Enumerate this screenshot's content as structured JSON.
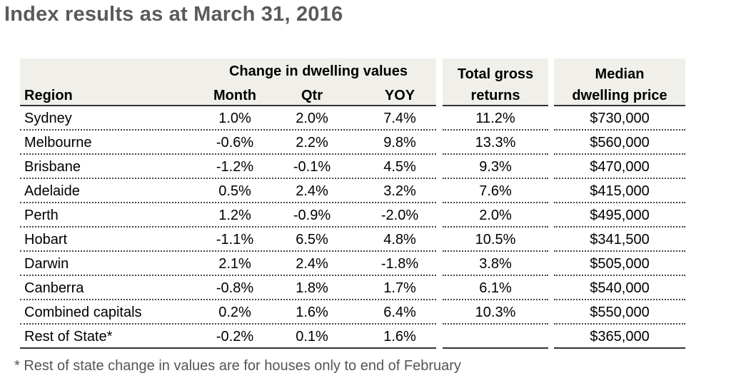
{
  "title": "Index results as at March 31, 2016",
  "header": {
    "group_label": "Change in dwelling values",
    "region": "Region",
    "month": "Month",
    "qtr": "Qtr",
    "yoy": "YOY",
    "returns_line1": "Total gross",
    "returns_line2": "returns",
    "median_line1": "Median",
    "median_line2": "dwelling price"
  },
  "rows": [
    {
      "region": "Sydney",
      "month": "1.0%",
      "qtr": "2.0%",
      "yoy": "7.4%",
      "returns": "11.2%",
      "median": "$730,000"
    },
    {
      "region": "Melbourne",
      "month": "-0.6%",
      "qtr": "2.2%",
      "yoy": "9.8%",
      "returns": "13.3%",
      "median": "$560,000"
    },
    {
      "region": "Brisbane",
      "month": "-1.2%",
      "qtr": "-0.1%",
      "yoy": "4.5%",
      "returns": "9.3%",
      "median": "$470,000"
    },
    {
      "region": "Adelaide",
      "month": "0.5%",
      "qtr": "2.4%",
      "yoy": "3.2%",
      "returns": "7.6%",
      "median": "$415,000"
    },
    {
      "region": "Perth",
      "month": "1.2%",
      "qtr": "-0.9%",
      "yoy": "-2.0%",
      "returns": "2.0%",
      "median": "$495,000"
    },
    {
      "region": "Hobart",
      "month": "-1.1%",
      "qtr": "6.5%",
      "yoy": "4.8%",
      "returns": "10.5%",
      "median": "$341,500"
    },
    {
      "region": "Darwin",
      "month": "2.1%",
      "qtr": "2.4%",
      "yoy": "-1.8%",
      "returns": "3.8%",
      "median": "$505,000"
    },
    {
      "region": "Canberra",
      "month": "-0.8%",
      "qtr": "1.8%",
      "yoy": "1.7%",
      "returns": "6.1%",
      "median": "$540,000"
    },
    {
      "region": "Combined capitals",
      "month": "0.2%",
      "qtr": "1.6%",
      "yoy": "6.4%",
      "returns": "10.3%",
      "median": "$550,000"
    },
    {
      "region": "Rest of State*",
      "month": "-0.2%",
      "qtr": "0.1%",
      "yoy": "1.6%",
      "returns": "",
      "median": "$365,000"
    }
  ],
  "footnote": "* Rest of state change in values are for houses only to end of February",
  "colors": {
    "header_bg": "#f0efea",
    "title": "#5a5a5a",
    "footnote": "#555555"
  }
}
